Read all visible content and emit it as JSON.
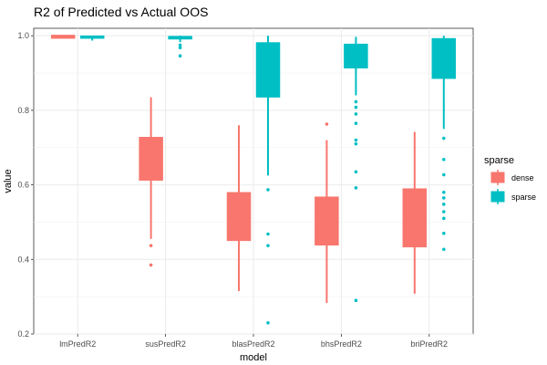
{
  "chart_data": {
    "type": "box",
    "title": "R2 of Predicted vs Actual OOS",
    "xlabel": "model",
    "ylabel": "value",
    "ylim": [
      0.2,
      1.02
    ],
    "yticks": [
      0.2,
      0.4,
      0.6,
      0.8,
      1.0
    ],
    "ytick_labels": [
      "0.2",
      "0.4",
      "0.6",
      "0.8",
      "1.0"
    ],
    "categories": [
      "lmPredR2",
      "susPredR2",
      "blasPredR2",
      "bhsPredR2",
      "briPredR2"
    ],
    "grid": true,
    "legend": {
      "title": "sparse",
      "placement": "right"
    },
    "series": [
      {
        "name": "dense",
        "color": "#F8766D",
        "boxes": [
          {
            "lower_whisker": 0.997,
            "q1": 0.997,
            "median": 1.0,
            "q3": 1.0,
            "upper_whisker": 1.0,
            "outliers": []
          },
          {
            "lower_whisker": 0.455,
            "q1": 0.612,
            "median": 0.64,
            "q3": 0.728,
            "upper_whisker": 0.835,
            "outliers": [
              0.437,
              0.385
            ]
          },
          {
            "lower_whisker": 0.315,
            "q1": 0.45,
            "median": 0.5,
            "q3": 0.58,
            "upper_whisker": 0.76,
            "outliers": []
          },
          {
            "lower_whisker": 0.283,
            "q1": 0.438,
            "median": 0.5,
            "q3": 0.568,
            "upper_whisker": 0.72,
            "outliers": [
              0.763
            ]
          },
          {
            "lower_whisker": 0.308,
            "q1": 0.433,
            "median": 0.5,
            "q3": 0.59,
            "upper_whisker": 0.742,
            "outliers": []
          }
        ]
      },
      {
        "name": "sparse",
        "color": "#00BFC4",
        "boxes": [
          {
            "lower_whisker": 0.987,
            "q1": 0.995,
            "median": 0.998,
            "q3": 1.0,
            "upper_whisker": 1.0,
            "outliers": []
          },
          {
            "lower_whisker": 0.983,
            "q1": 0.993,
            "median": 0.997,
            "q3": 0.998,
            "upper_whisker": 1.0,
            "outliers": [
              0.975,
              0.968,
              0.946
            ]
          },
          {
            "lower_whisker": 0.625,
            "q1": 0.835,
            "median": 0.93,
            "q3": 0.982,
            "upper_whisker": 1.0,
            "outliers": [
              0.587,
              0.468,
              0.437,
              0.23
            ]
          },
          {
            "lower_whisker": 0.84,
            "q1": 0.913,
            "median": 0.955,
            "q3": 0.978,
            "upper_whisker": 0.997,
            "outliers": [
              0.823,
              0.808,
              0.79,
              0.765,
              0.72,
              0.71,
              0.635,
              0.592,
              0.29
            ]
          },
          {
            "lower_whisker": 0.75,
            "q1": 0.885,
            "median": 0.95,
            "q3": 0.993,
            "upper_whisker": 1.0,
            "outliers": [
              0.725,
              0.668,
              0.627,
              0.58,
              0.565,
              0.548,
              0.528,
              0.51,
              0.47,
              0.427
            ]
          }
        ]
      }
    ]
  }
}
